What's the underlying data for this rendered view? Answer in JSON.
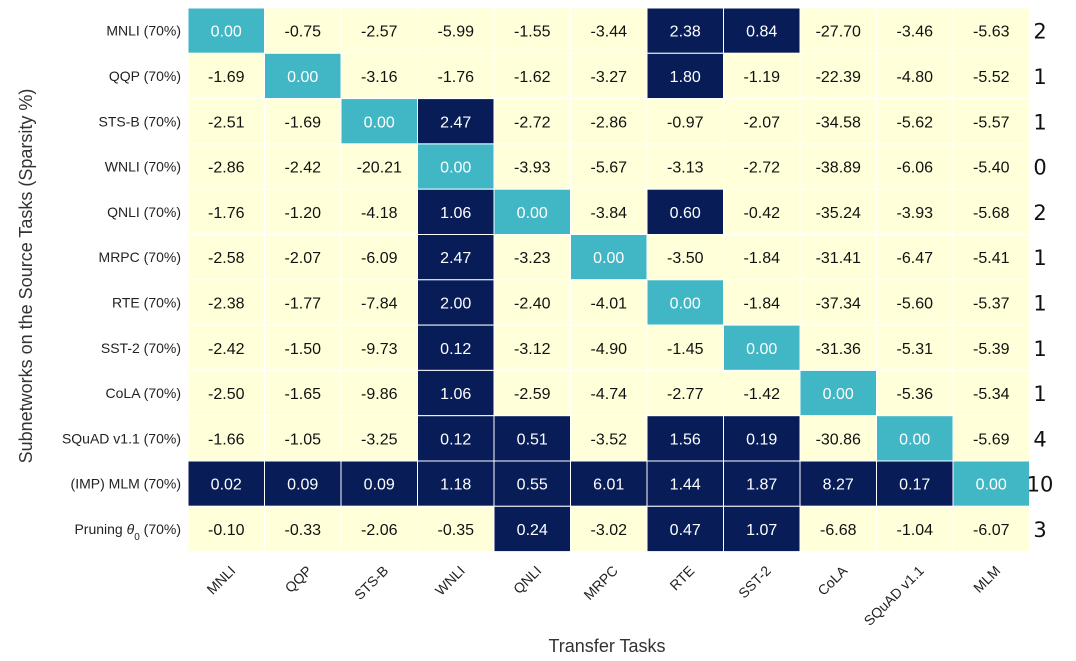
{
  "chart_data": {
    "type": "heatmap",
    "title": "",
    "xlabel": "Transfer Tasks",
    "ylabel": "Subnetworks on the Source Tasks (Sparsity %)",
    "columns": [
      "MNLI",
      "QQP",
      "STS-B",
      "WNLI",
      "QNLI",
      "MRPC",
      "RTE",
      "SST-2",
      "CoLA",
      "SQuAD v1.1",
      "MLM"
    ],
    "rows": [
      {
        "label": "MNLI (70%)",
        "count": "2",
        "values": [
          "0.00",
          "-0.75",
          "-2.57",
          "-5.99",
          "-1.55",
          "-3.44",
          "2.38",
          "0.84",
          "-27.70",
          "-3.46",
          "-5.63"
        ]
      },
      {
        "label": "QQP (70%)",
        "count": "1",
        "values": [
          "-1.69",
          "0.00",
          "-3.16",
          "-1.76",
          "-1.62",
          "-3.27",
          "1.80",
          "-1.19",
          "-22.39",
          "-4.80",
          "-5.52"
        ]
      },
      {
        "label": "STS-B (70%)",
        "count": "1",
        "values": [
          "-2.51",
          "-1.69",
          "0.00",
          "2.47",
          "-2.72",
          "-2.86",
          "-0.97",
          "-2.07",
          "-34.58",
          "-5.62",
          "-5.57"
        ]
      },
      {
        "label": "WNLI (70%)",
        "count": "0",
        "values": [
          "-2.86",
          "-2.42",
          "-20.21",
          "0.00",
          "-3.93",
          "-5.67",
          "-3.13",
          "-2.72",
          "-38.89",
          "-6.06",
          "-5.40"
        ]
      },
      {
        "label": "QNLI (70%)",
        "count": "2",
        "values": [
          "-1.76",
          "-1.20",
          "-4.18",
          "1.06",
          "0.00",
          "-3.84",
          "0.60",
          "-0.42",
          "-35.24",
          "-3.93",
          "-5.68"
        ]
      },
      {
        "label": "MRPC (70%)",
        "count": "1",
        "values": [
          "-2.58",
          "-2.07",
          "-6.09",
          "2.47",
          "-3.23",
          "0.00",
          "-3.50",
          "-1.84",
          "-31.41",
          "-6.47",
          "-5.41"
        ]
      },
      {
        "label": "RTE (70%)",
        "count": "1",
        "values": [
          "-2.38",
          "-1.77",
          "-7.84",
          "2.00",
          "-2.40",
          "-4.01",
          "0.00",
          "-1.84",
          "-37.34",
          "-5.60",
          "-5.37"
        ]
      },
      {
        "label": "SST-2 (70%)",
        "count": "1",
        "values": [
          "-2.42",
          "-1.50",
          "-9.73",
          "0.12",
          "-3.12",
          "-4.90",
          "-1.45",
          "0.00",
          "-31.36",
          "-5.31",
          "-5.39"
        ]
      },
      {
        "label": "CoLA (70%)",
        "count": "1",
        "values": [
          "-2.50",
          "-1.65",
          "-9.86",
          "1.06",
          "-2.59",
          "-4.74",
          "-2.77",
          "-1.42",
          "0.00",
          "-5.36",
          "-5.34"
        ]
      },
      {
        "label": "SQuAD v1.1 (70%)",
        "count": "4",
        "values": [
          "-1.66",
          "-1.05",
          "-3.25",
          "0.12",
          "0.51",
          "-3.52",
          "1.56",
          "0.19",
          "-30.86",
          "0.00",
          "-5.69"
        ]
      },
      {
        "label": "(IMP) MLM (70%)",
        "count": "10",
        "values": [
          "0.02",
          "0.09",
          "0.09",
          "1.18",
          "0.55",
          "6.01",
          "1.44",
          "1.87",
          "8.27",
          "0.17",
          "0.00"
        ]
      },
      {
        "label": "Pruning θ0 (70%)",
        "label_main": "Pruning ",
        "label_theta": "θ",
        "label_sub": "0",
        "label_tail": " (70%)",
        "count": "3",
        "values": [
          "-0.10",
          "-0.33",
          "-2.06",
          "-0.35",
          "0.24",
          "-3.02",
          "0.47",
          "1.07",
          "-6.68",
          "-1.04",
          "-6.07"
        ]
      }
    ],
    "colors": {
      "negative": "#ffffd9",
      "zero": "#41b6c4",
      "positive": "#081d58",
      "text_dark": "#111111",
      "text_light": "#ffffff",
      "grid": "#ffffff"
    },
    "grid": true,
    "legend": "none"
  }
}
